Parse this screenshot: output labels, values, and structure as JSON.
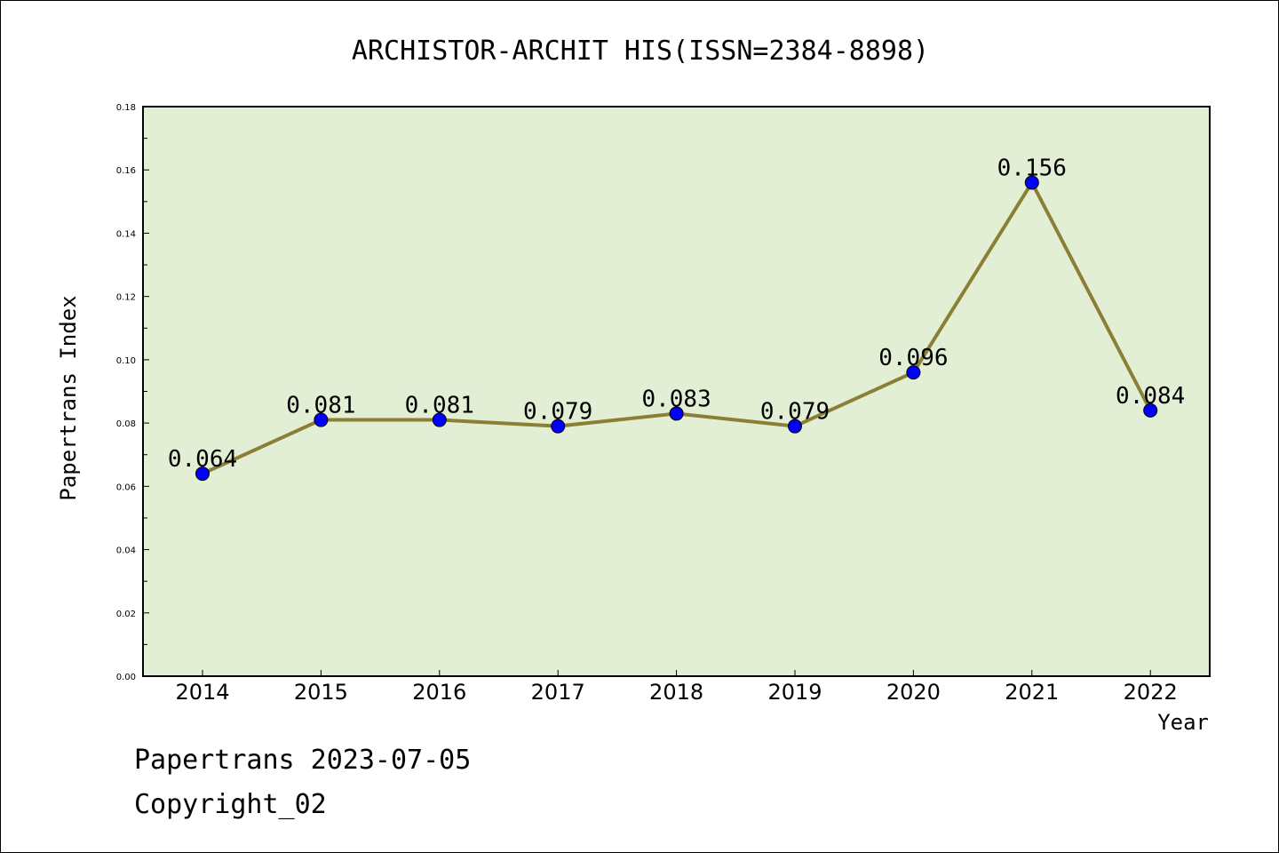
{
  "chart_data": {
    "type": "line",
    "title": "ARCHISTOR-ARCHIT HIS(ISSN=2384-8898)",
    "xlabel": "Year",
    "ylabel": "Papertrans Index",
    "categories": [
      "2014",
      "2015",
      "2016",
      "2017",
      "2018",
      "2019",
      "2020",
      "2021",
      "2022"
    ],
    "series": [
      {
        "name": "Papertrans Index",
        "values": [
          0.064,
          0.081,
          0.081,
          0.079,
          0.083,
          0.079,
          0.096,
          0.156,
          0.084
        ],
        "labels": [
          "0.064",
          "0.081",
          "0.081",
          "0.079",
          "0.083",
          "0.079",
          "0.096",
          "0.156",
          "0.084"
        ]
      }
    ],
    "ylim": [
      0,
      0.18
    ],
    "yticks": [
      "0.00",
      "0.02",
      "0.04",
      "0.06",
      "0.08",
      "0.10",
      "0.12",
      "0.14",
      "0.16",
      "0.18"
    ],
    "grid": false,
    "legend": "none"
  },
  "footer": {
    "line1": "Papertrans 2023-07-05",
    "line2": "Copyright_02"
  },
  "colors": {
    "plot_background": "#e2efd5",
    "line": "#8b7f35",
    "marker": "#0000ff"
  }
}
